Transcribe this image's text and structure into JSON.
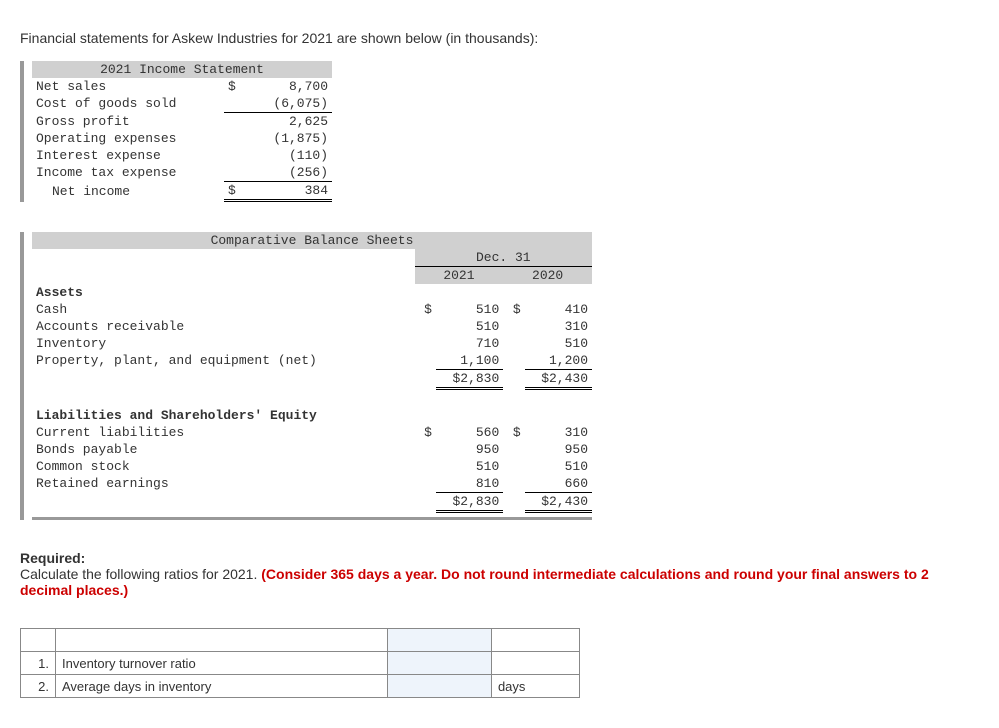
{
  "intro": "Financial statements for Askew Industries for 2021 are shown below (in thousands):",
  "income_statement": {
    "title": "2021 Income Statement",
    "rows": [
      {
        "label": "Net sales",
        "cur": "$",
        "value": "8,700",
        "style": "none"
      },
      {
        "label": "Cost of goods sold",
        "cur": "",
        "value": "(6,075)",
        "style": "underline"
      },
      {
        "label": "Gross profit",
        "cur": "",
        "value": "2,625",
        "style": "none"
      },
      {
        "label": "Operating expenses",
        "cur": "",
        "value": "(1,875)",
        "style": "none"
      },
      {
        "label": "Interest expense",
        "cur": "",
        "value": "(110)",
        "style": "none"
      },
      {
        "label": "Income tax expense",
        "cur": "",
        "value": "(256)",
        "style": "underline"
      },
      {
        "label": "Net income",
        "cur": "$",
        "value": "384",
        "style": "double",
        "indent": true
      }
    ]
  },
  "balance_sheet": {
    "title": "Comparative Balance Sheets",
    "date_header": "Dec. 31",
    "year1": "2021",
    "year2": "2020",
    "sections": [
      {
        "heading": "Assets",
        "rows": [
          {
            "label": "Cash",
            "c1": "$",
            "v1": "510",
            "c2": "$",
            "v2": "410",
            "style": "none"
          },
          {
            "label": "Accounts receivable",
            "c1": "",
            "v1": "510",
            "c2": "",
            "v2": "310",
            "style": "none"
          },
          {
            "label": "Inventory",
            "c1": "",
            "v1": "710",
            "c2": "",
            "v2": "510",
            "style": "none"
          },
          {
            "label": "Property, plant, and equipment (net)",
            "c1": "",
            "v1": "1,100",
            "c2": "",
            "v2": "1,200",
            "style": "underline"
          },
          {
            "label": "",
            "c1": "",
            "v1": "$2,830",
            "c2": "",
            "v2": "$2,430",
            "style": "double"
          }
        ]
      },
      {
        "heading": "Liabilities and Shareholders' Equity",
        "rows": [
          {
            "label": "Current liabilities",
            "c1": "$",
            "v1": "560",
            "c2": "$",
            "v2": "310",
            "style": "none"
          },
          {
            "label": "Bonds payable",
            "c1": "",
            "v1": "950",
            "c2": "",
            "v2": "950",
            "style": "none"
          },
          {
            "label": "Common stock",
            "c1": "",
            "v1": "510",
            "c2": "",
            "v2": "510",
            "style": "none"
          },
          {
            "label": "Retained earnings",
            "c1": "",
            "v1": "810",
            "c2": "",
            "v2": "660",
            "style": "underline"
          },
          {
            "label": "",
            "c1": "",
            "v1": "$2,830",
            "c2": "",
            "v2": "$2,430",
            "style": "double"
          }
        ]
      }
    ]
  },
  "required": {
    "heading": "Required:",
    "text_pre": "Calculate the following ratios for 2021. ",
    "text_red": "(Consider 365 days a year. Do not round intermediate calculations and round your final answers to 2 decimal places.)"
  },
  "answers": {
    "rows": [
      {
        "num": "1.",
        "label": "Inventory turnover ratio",
        "unit": ""
      },
      {
        "num": "2.",
        "label": "Average days in inventory",
        "unit": "days"
      }
    ]
  }
}
